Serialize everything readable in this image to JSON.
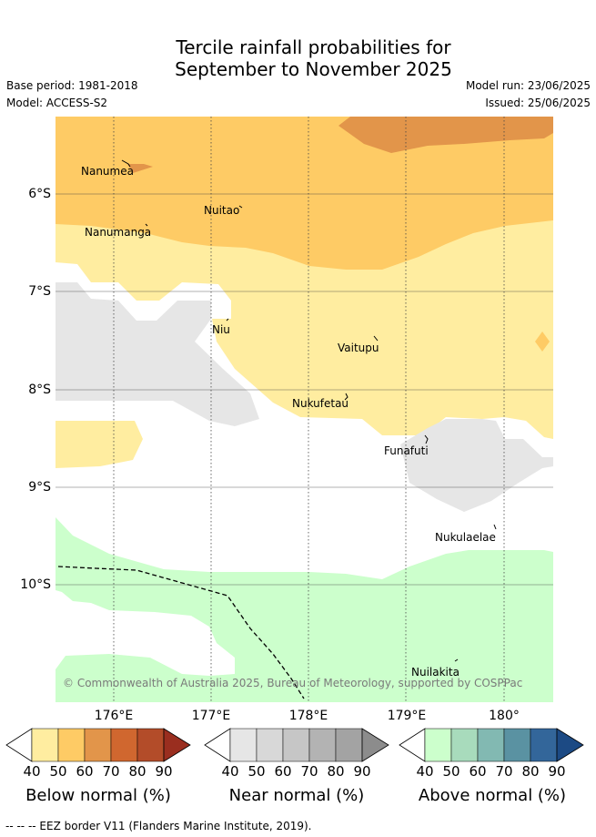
{
  "title_line1": "Tercile rainfall probabilities for",
  "title_line2": "September to November 2025",
  "base_period": "Base period: 1981-2018",
  "model": "Model: ACCESS-S2",
  "model_run": "Model run: 23/06/2025",
  "issued": "Issued: 25/06/2025",
  "lat_ticks": [
    "6°S",
    "7°S",
    "8°S",
    "9°S",
    "10°S"
  ],
  "lon_ticks": [
    "176°E",
    "177°E",
    "178°E",
    "179°E",
    "180°"
  ],
  "places": {
    "nanumea": "Nanumea",
    "nuitao": "Nuitao",
    "nanumanga": "Nanumanga",
    "niu": "Niu",
    "vaitupu": "Vaitupu",
    "nukufetau": "Nukufetau",
    "funafuti": "Funafuti",
    "nukulaelae": "Nukulaelae",
    "nuilakita": "Nuilakita"
  },
  "copyright": "© Commonwealth of Australia 2025, Bureau of Meteorology, supported by COSPPac",
  "colorbars": {
    "ticks": [
      "40",
      "50",
      "60",
      "70",
      "80",
      "90"
    ],
    "below": {
      "title": "Below normal (%)",
      "colors": [
        "#ffeda0",
        "#fecb65",
        "#e2954a",
        "#d0672f",
        "#b34c29",
        "#9a2e1f"
      ]
    },
    "near": {
      "title": "Near normal (%)",
      "colors": [
        "#e6e6e6",
        "#d8d8d8",
        "#c6c6c6",
        "#b3b3b3",
        "#a3a3a3",
        "#8c8c8c"
      ]
    },
    "above": {
      "title": "Above normal (%)",
      "colors": [
        "#ccffcc",
        "#a8dbbc",
        "#82b9b2",
        "#5a92a2",
        "#33669a",
        "#1c4a84"
      ]
    }
  },
  "footer": "--  --  -- EEZ border V11 (Flanders Marine Institute, 2019)."
}
